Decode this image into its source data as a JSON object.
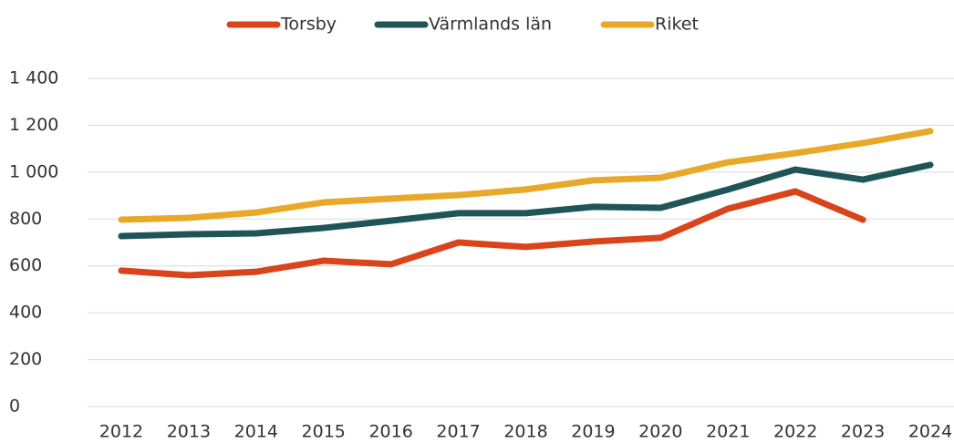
{
  "chart_data": {
    "type": "line",
    "categories": [
      "2012",
      "2013",
      "2014",
      "2015",
      "2016",
      "2017",
      "2018",
      "2019",
      "2020",
      "2021",
      "2022",
      "2023",
      "2024"
    ],
    "series": [
      {
        "name": "Torsby",
        "color": "#d9441b",
        "values": [
          580,
          560,
          575,
          622,
          607,
          700,
          681,
          704,
          720,
          844,
          918,
          797,
          null
        ]
      },
      {
        "name": "Värmlands län",
        "color": "#1f5556",
        "values": [
          727,
          735,
          739,
          762,
          793,
          825,
          825,
          852,
          848,
          926,
          1011,
          968,
          1031
        ]
      },
      {
        "name": "Riket",
        "color": "#e8a92a",
        "values": [
          797,
          805,
          828,
          871,
          887,
          902,
          926,
          965,
          976,
          1042,
          1081,
          1124,
          1175
        ]
      }
    ],
    "ylim": [
      0,
      1400
    ],
    "yticks": [
      0,
      200,
      400,
      600,
      800,
      {
        "value": 1000,
        "label": "1 000"
      },
      {
        "value": 1200,
        "label": "1 200"
      },
      {
        "value": 1400,
        "label": "1 400"
      }
    ],
    "grid": true,
    "legend": "top"
  }
}
